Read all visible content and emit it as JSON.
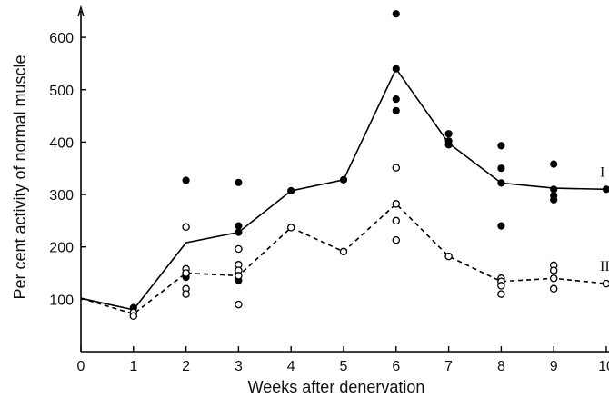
{
  "chart_data": {
    "type": "scatter",
    "title": "",
    "xlabel": "Weeks after denervation",
    "ylabel": "Per cent activity of normal muscle",
    "xlim": [
      0,
      10
    ],
    "ylim": [
      0,
      650
    ],
    "x_ticks": [
      "0",
      "1",
      "2",
      "3",
      "4",
      "5",
      "6",
      "7",
      "8",
      "9",
      "10"
    ],
    "y_ticks": [
      "100",
      "200",
      "300",
      "400",
      "500",
      "600"
    ],
    "grid": false,
    "series": [
      {
        "name": "I",
        "marker": "filled-circle",
        "line_style": "solid",
        "color": "#000000",
        "mean_line": [
          {
            "x": 0,
            "y": 102
          },
          {
            "x": 1,
            "y": 80
          },
          {
            "x": 2,
            "y": 208
          },
          {
            "x": 3,
            "y": 228
          },
          {
            "x": 4,
            "y": 307
          },
          {
            "x": 5,
            "y": 328
          },
          {
            "x": 6,
            "y": 540
          },
          {
            "x": 7,
            "y": 398
          },
          {
            "x": 8,
            "y": 322
          },
          {
            "x": 9,
            "y": 312
          },
          {
            "x": 10,
            "y": 310
          }
        ],
        "points": [
          {
            "x": 1,
            "y": 84
          },
          {
            "x": 2,
            "y": 327
          },
          {
            "x": 2,
            "y": 148
          },
          {
            "x": 2,
            "y": 142
          },
          {
            "x": 3,
            "y": 323
          },
          {
            "x": 3,
            "y": 240
          },
          {
            "x": 3,
            "y": 228
          },
          {
            "x": 3,
            "y": 145
          },
          {
            "x": 3,
            "y": 136
          },
          {
            "x": 4,
            "y": 307
          },
          {
            "x": 5,
            "y": 328
          },
          {
            "x": 6,
            "y": 645
          },
          {
            "x": 6,
            "y": 540
          },
          {
            "x": 6,
            "y": 482
          },
          {
            "x": 6,
            "y": 460
          },
          {
            "x": 7,
            "y": 416
          },
          {
            "x": 7,
            "y": 402
          },
          {
            "x": 7,
            "y": 395
          },
          {
            "x": 8,
            "y": 393
          },
          {
            "x": 8,
            "y": 350
          },
          {
            "x": 8,
            "y": 322
          },
          {
            "x": 8,
            "y": 240
          },
          {
            "x": 9,
            "y": 358
          },
          {
            "x": 9,
            "y": 310
          },
          {
            "x": 9,
            "y": 298
          },
          {
            "x": 9,
            "y": 290
          },
          {
            "x": 10,
            "y": 310
          }
        ]
      },
      {
        "name": "II",
        "marker": "open-circle",
        "line_style": "dashed",
        "color": "#000000",
        "mean_line": [
          {
            "x": 0,
            "y": 102
          },
          {
            "x": 1,
            "y": 72
          },
          {
            "x": 2,
            "y": 150
          },
          {
            "x": 3,
            "y": 145
          },
          {
            "x": 4,
            "y": 237
          },
          {
            "x": 5,
            "y": 191
          },
          {
            "x": 6,
            "y": 282
          },
          {
            "x": 7,
            "y": 182
          },
          {
            "x": 8,
            "y": 134
          },
          {
            "x": 9,
            "y": 140
          },
          {
            "x": 10,
            "y": 130
          }
        ],
        "points": [
          {
            "x": 1,
            "y": 75
          },
          {
            "x": 1,
            "y": 68
          },
          {
            "x": 2,
            "y": 238
          },
          {
            "x": 2,
            "y": 158
          },
          {
            "x": 2,
            "y": 150
          },
          {
            "x": 2,
            "y": 120
          },
          {
            "x": 2,
            "y": 110
          },
          {
            "x": 3,
            "y": 196
          },
          {
            "x": 3,
            "y": 166
          },
          {
            "x": 3,
            "y": 155
          },
          {
            "x": 3,
            "y": 145
          },
          {
            "x": 3,
            "y": 90
          },
          {
            "x": 4,
            "y": 237
          },
          {
            "x": 5,
            "y": 191
          },
          {
            "x": 6,
            "y": 351
          },
          {
            "x": 6,
            "y": 282
          },
          {
            "x": 6,
            "y": 250
          },
          {
            "x": 6,
            "y": 213
          },
          {
            "x": 7,
            "y": 182
          },
          {
            "x": 8,
            "y": 140
          },
          {
            "x": 8,
            "y": 134
          },
          {
            "x": 8,
            "y": 126
          },
          {
            "x": 8,
            "y": 110
          },
          {
            "x": 9,
            "y": 165
          },
          {
            "x": 9,
            "y": 155
          },
          {
            "x": 9,
            "y": 140
          },
          {
            "x": 9,
            "y": 120
          },
          {
            "x": 10,
            "y": 130
          }
        ]
      }
    ]
  }
}
